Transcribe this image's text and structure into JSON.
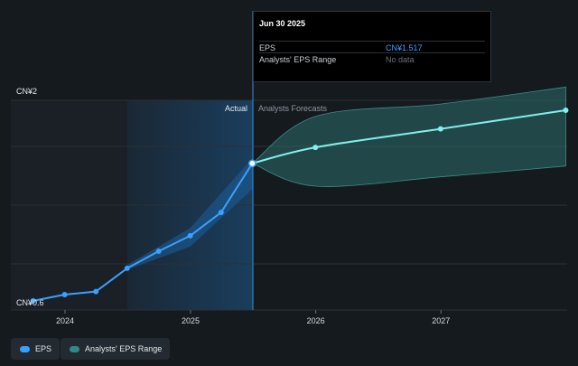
{
  "tooltip": {
    "date": "Jun 30 2025",
    "rows": [
      {
        "label": "EPS",
        "value": "CN¥1.517"
      },
      {
        "label": "Analysts' EPS Range",
        "value": "No data"
      }
    ]
  },
  "legend": [
    {
      "label": "EPS",
      "color": "#3aa0ff"
    },
    {
      "label": "Analysts' EPS Range",
      "color": "#2e8a8a"
    }
  ],
  "chart_data": {
    "type": "line",
    "ylim": [
      0.6,
      2.0
    ],
    "y_axis_labels": [
      "CN¥2",
      "CN¥0.6"
    ],
    "x_ticks": [
      "2024",
      "2025",
      "2026",
      "2027"
    ],
    "section_labels": {
      "actual": "Actual",
      "forecast": "Analysts Forecasts"
    },
    "series": [
      {
        "name": "EPS",
        "color": "#3aa0ff",
        "points": [
          {
            "x": "2023-09-30",
            "y": 0.63
          },
          {
            "x": "2023-12-31",
            "y": 0.67
          },
          {
            "x": "2024-03-31",
            "y": 0.69
          },
          {
            "x": "2024-06-30",
            "y": 0.84
          },
          {
            "x": "2024-09-30",
            "y": 0.95
          },
          {
            "x": "2024-12-31",
            "y": 1.05
          },
          {
            "x": "2025-03-31",
            "y": 1.2
          },
          {
            "x": "2025-06-30",
            "y": 1.517
          }
        ],
        "range_low": [
          {
            "x": "2024-06-30",
            "y": 0.83
          },
          {
            "x": "2024-12-31",
            "y": 0.98
          },
          {
            "x": "2025-06-30",
            "y": 1.35
          }
        ],
        "range_high": [
          {
            "x": "2024-06-30",
            "y": 0.86
          },
          {
            "x": "2024-12-31",
            "y": 1.1
          },
          {
            "x": "2025-06-30",
            "y": 1.55
          }
        ]
      },
      {
        "name": "Analysts Forecasts",
        "color": "#7ff0ec",
        "points": [
          {
            "x": "2025-06-30",
            "y": 1.517
          },
          {
            "x": "2025-12-31",
            "y": 1.62
          },
          {
            "x": "2026-12-31",
            "y": 1.74
          },
          {
            "x": "2027-12-31",
            "y": 1.86
          }
        ],
        "range_low": [
          {
            "x": "2025-06-30",
            "y": 1.517
          },
          {
            "x": "2025-12-31",
            "y": 1.37
          },
          {
            "x": "2026-12-31",
            "y": 1.43
          },
          {
            "x": "2027-12-31",
            "y": 1.5
          }
        ],
        "range_high": [
          {
            "x": "2025-06-30",
            "y": 1.517
          },
          {
            "x": "2025-12-31",
            "y": 1.82
          },
          {
            "x": "2026-12-31",
            "y": 1.9
          },
          {
            "x": "2027-12-31",
            "y": 2.01
          }
        ]
      }
    ]
  }
}
